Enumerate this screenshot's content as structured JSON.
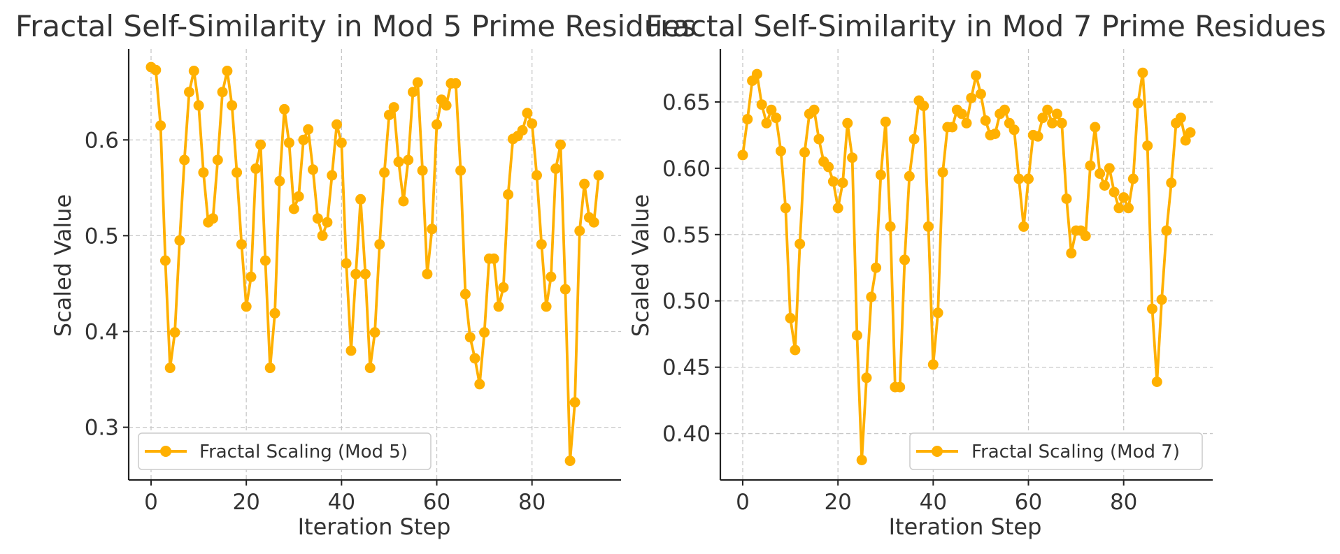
{
  "colors": {
    "series": "#FFB000",
    "text": "#333333",
    "axis": "#222222",
    "grid": "#C8C8C8"
  },
  "chart_data": [
    {
      "type": "line",
      "title": "Fractal Self-Similarity in Mod 5 Prime Residues",
      "xlabel": "Iteration Step",
      "ylabel": "Scaled Value",
      "xlim": [
        -4.7,
        98.7
      ],
      "ylim": [
        0.245,
        0.695
      ],
      "xticks": [
        0,
        20,
        40,
        60,
        80
      ],
      "yticks": [
        0.3,
        0.4,
        0.5,
        0.6
      ],
      "ytick_labels": [
        "0.3",
        "0.4",
        "0.5",
        "0.6"
      ],
      "grid": true,
      "legend": "lower-left",
      "series": [
        {
          "name": "Fractal Scaling (Mod 5)",
          "marker": "circle",
          "x": [
            0,
            1,
            2,
            3,
            4,
            5,
            6,
            7,
            8,
            9,
            10,
            11,
            12,
            13,
            14,
            15,
            16,
            17,
            18,
            19,
            20,
            21,
            22,
            23,
            24,
            25,
            26,
            27,
            28,
            29,
            30,
            31,
            32,
            33,
            34,
            35,
            36,
            37,
            38,
            39,
            40,
            41,
            42,
            43,
            44,
            45,
            46,
            47,
            48,
            49,
            50,
            51,
            52,
            53,
            54,
            55,
            56,
            57,
            58,
            59,
            60,
            61,
            62,
            63,
            64,
            65,
            66,
            67,
            68,
            69,
            70,
            71,
            72,
            73,
            74,
            75,
            76,
            77,
            78,
            79,
            80,
            81,
            82,
            83,
            84,
            85,
            86,
            87,
            88,
            89,
            90,
            91,
            92,
            93,
            94
          ],
          "values": [
            0.676,
            0.673,
            0.615,
            0.474,
            0.362,
            0.399,
            0.495,
            0.579,
            0.65,
            0.672,
            0.636,
            0.566,
            0.514,
            0.518,
            0.579,
            0.65,
            0.672,
            0.636,
            0.566,
            0.491,
            0.426,
            0.457,
            0.57,
            0.595,
            0.474,
            0.362,
            0.419,
            0.557,
            0.632,
            0.597,
            0.528,
            0.541,
            0.6,
            0.611,
            0.569,
            0.518,
            0.5,
            0.514,
            0.563,
            0.616,
            0.597,
            0.471,
            0.38,
            0.46,
            0.538,
            0.46,
            0.362,
            0.399,
            0.491,
            0.566,
            0.626,
            0.634,
            0.577,
            0.536,
            0.579,
            0.65,
            0.66,
            0.568,
            0.46,
            0.507,
            0.616,
            0.642,
            0.636,
            0.659,
            0.659,
            0.568,
            0.439,
            0.394,
            0.372,
            0.345,
            0.399,
            0.476,
            0.476,
            0.426,
            0.446,
            0.543,
            0.601,
            0.604,
            0.61,
            0.628,
            0.617,
            0.563,
            0.491,
            0.426,
            0.457,
            0.57,
            0.595,
            0.444,
            0.265,
            0.326,
            0.505,
            0.554,
            0.519,
            0.514,
            0.563
          ]
        }
      ]
    },
    {
      "type": "line",
      "title": "Fractal Self-Similarity in Mod 7 Prime Residues",
      "xlabel": "Iteration Step",
      "ylabel": "Scaled Value",
      "xlim": [
        -4.7,
        98.7
      ],
      "ylim": [
        0.365,
        0.69
      ],
      "xticks": [
        0,
        20,
        40,
        60,
        80
      ],
      "yticks": [
        0.4,
        0.45,
        0.5,
        0.55,
        0.6,
        0.65
      ],
      "ytick_labels": [
        "0.40",
        "0.45",
        "0.50",
        "0.55",
        "0.60",
        "0.65"
      ],
      "grid": true,
      "legend": "lower-right",
      "series": [
        {
          "name": "Fractal Scaling (Mod 7)",
          "marker": "circle",
          "x": [
            0,
            1,
            2,
            3,
            4,
            5,
            6,
            7,
            8,
            9,
            10,
            11,
            12,
            13,
            14,
            15,
            16,
            17,
            18,
            19,
            20,
            21,
            22,
            23,
            24,
            25,
            26,
            27,
            28,
            29,
            30,
            31,
            32,
            33,
            34,
            35,
            36,
            37,
            38,
            39,
            40,
            41,
            42,
            43,
            44,
            45,
            46,
            47,
            48,
            49,
            50,
            51,
            52,
            53,
            54,
            55,
            56,
            57,
            58,
            59,
            60,
            61,
            62,
            63,
            64,
            65,
            66,
            67,
            68,
            69,
            70,
            71,
            72,
            73,
            74,
            75,
            76,
            77,
            78,
            79,
            80,
            81,
            82,
            83,
            84,
            85,
            86,
            87,
            88,
            89,
            90,
            91,
            92,
            93,
            94
          ],
          "values": [
            0.61,
            0.637,
            0.666,
            0.671,
            0.648,
            0.634,
            0.644,
            0.638,
            0.613,
            0.57,
            0.487,
            0.463,
            0.543,
            0.612,
            0.641,
            0.644,
            0.622,
            0.605,
            0.601,
            0.59,
            0.57,
            0.589,
            0.634,
            0.608,
            0.474,
            0.38,
            0.442,
            0.503,
            0.525,
            0.595,
            0.635,
            0.556,
            0.435,
            0.435,
            0.531,
            0.594,
            0.622,
            0.651,
            0.647,
            0.556,
            0.452,
            0.491,
            0.597,
            0.631,
            0.631,
            0.644,
            0.641,
            0.634,
            0.653,
            0.67,
            0.656,
            0.636,
            0.625,
            0.626,
            0.641,
            0.644,
            0.634,
            0.629,
            0.592,
            0.556,
            0.592,
            0.625,
            0.624,
            0.638,
            0.644,
            0.634,
            0.641,
            0.634,
            0.577,
            0.536,
            0.553,
            0.553,
            0.549,
            0.602,
            0.631,
            0.596,
            0.587,
            0.6,
            0.582,
            0.57,
            0.578,
            0.57,
            0.592,
            0.649,
            0.672,
            0.617,
            0.494,
            0.439,
            0.501,
            0.553,
            0.589,
            0.634,
            0.638,
            0.621,
            0.627
          ]
        }
      ]
    }
  ]
}
